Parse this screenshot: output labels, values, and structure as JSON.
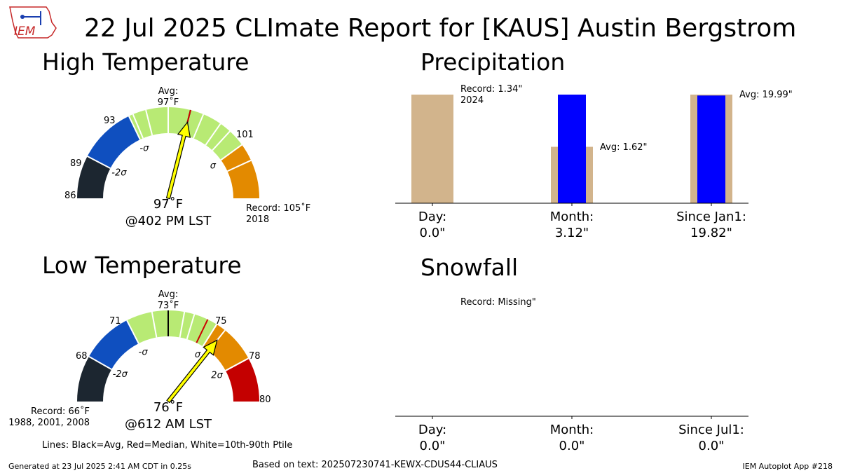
{
  "title": "22 Jul 2025 CLImate Report for [KAUS] Austin Bergstrom",
  "logo_text": "IEM",
  "colors": {
    "dark": "#1c2630",
    "blue": "#0f4fbf",
    "green": "#b8ea74",
    "orange": "#e38a00",
    "red": "#c40000",
    "median_line": "#cc0000",
    "needle": "#ffff00",
    "precip_avg": "#d2b48c",
    "precip_obs": "#0000ff"
  },
  "chart_data": [
    {
      "type": "gauge",
      "title": "High Temperature",
      "range": [
        86,
        105
      ],
      "tick_labels": [
        "86",
        "89",
        "93",
        "101"
      ],
      "bands": [
        {
          "from": 86,
          "to": 88.9,
          "color": "dark"
        },
        {
          "from": 88.9,
          "to": 92.8,
          "color": "blue"
        },
        {
          "from": 92.8,
          "to": 101.2,
          "color": "green"
        },
        {
          "from": 101.2,
          "to": 102.4,
          "color": "orange"
        },
        {
          "from": 102.4,
          "to": 105,
          "color": "orange"
        }
      ],
      "white_lines": [
        93.1,
        94.0,
        95.5,
        97.9,
        99.2,
        100.0
      ],
      "sigma_labels": [
        {
          "text": "-2σ",
          "value": 88.9
        },
        {
          "text": "-σ",
          "value": 92.8
        },
        {
          "text": "σ",
          "value": 101.2
        }
      ],
      "avg": 97,
      "avg_label": "Avg:",
      "avg_value": "97˚F",
      "median": 97,
      "observed": 97,
      "observed_label": "97˚F",
      "time_label": "@402 PM LST",
      "record_label": "Record: 105˚F",
      "record_years": "2018"
    },
    {
      "type": "gauge",
      "title": "Low Temperature",
      "range": [
        66,
        80
      ],
      "tick_labels": [
        "68",
        "71",
        "75",
        "78",
        "80"
      ],
      "bands": [
        {
          "from": 66,
          "to": 68.3,
          "color": "dark"
        },
        {
          "from": 68.3,
          "to": 70.9,
          "color": "blue"
        },
        {
          "from": 70.9,
          "to": 75.5,
          "color": "green"
        },
        {
          "from": 75.5,
          "to": 77.8,
          "color": "orange"
        },
        {
          "from": 77.8,
          "to": 80,
          "color": "red"
        }
      ],
      "white_lines": [
        72.2,
        73.8,
        74.3,
        75.5,
        76.0,
        77.8
      ],
      "sigma_labels": [
        {
          "text": "-2σ",
          "value": 68.3
        },
        {
          "text": "-σ",
          "value": 70.9
        },
        {
          "text": "σ",
          "value": 75.5
        },
        {
          "text": "2σ",
          "value": 77.8
        }
      ],
      "avg": 73,
      "avg_label": "Avg:",
      "avg_value": "73˚F",
      "median": 75,
      "observed": 76,
      "observed_label": "76˚F",
      "time_label": "@612 AM LST",
      "record_label": "Record: 66˚F",
      "record_years": "1988, 2001, 2008"
    },
    {
      "type": "bar",
      "title": "Precipitation",
      "categories": [
        "Day:",
        "Month:",
        "Since Jan1:"
      ],
      "category_values": [
        "0.0\"",
        "3.12\"",
        "19.82\""
      ],
      "series": [
        {
          "name": "Average",
          "values": [
            null,
            1.62,
            19.99
          ]
        },
        {
          "name": "Observed",
          "values": [
            0.0,
            3.12,
            19.82
          ]
        }
      ],
      "record": 1.34,
      "annotations": {
        "day_record": "Record: 1.34\"",
        "day_record_year": "2024",
        "month_avg": "Avg: 1.62\"",
        "year_avg": "Avg: 19.99\""
      }
    },
    {
      "type": "bar",
      "title": "Snowfall",
      "categories": [
        "Day:",
        "Month:",
        "Since Jul1:"
      ],
      "category_values": [
        "0.0\"",
        "0.0\"",
        "0.0\""
      ],
      "series": [
        {
          "name": "Observed",
          "values": [
            0.0,
            0.0,
            0.0
          ]
        }
      ],
      "annotations": {
        "day_record": "Record: Missing\""
      }
    }
  ],
  "footer": {
    "lines_legend": "Lines: Black=Avg, Red=Median, White=10th-90th Ptile",
    "generated": "Generated at 23 Jul 2025 2:41 AM CDT in 0.25s",
    "based_on": "Based on text: 202507230741-KEWX-CDUS44-CLIAUS",
    "app": "IEM Autoplot App #218"
  }
}
